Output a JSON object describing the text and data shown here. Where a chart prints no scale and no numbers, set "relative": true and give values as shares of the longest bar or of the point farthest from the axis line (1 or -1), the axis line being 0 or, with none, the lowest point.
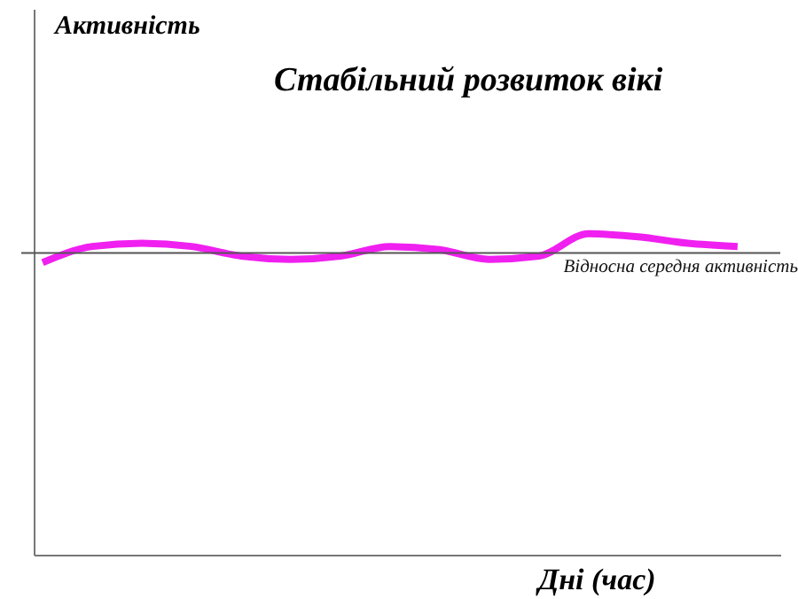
{
  "chart_data": {
    "type": "line",
    "title": "Стабільний розвиток вікі",
    "xlabel": "Дні  (час)",
    "annotations": [
      "Активність"
    ],
    "relative": true,
    "grid": false,
    "legend": false,
    "marker": "none",
    "line_style": "solid",
    "categories": [
      null,
      null,
      null,
      null,
      null,
      null,
      null,
      null,
      null,
      null,
      null,
      null,
      null,
      null,
      null
    ],
    "series": [
      {
        "color": "#f020f0",
        "values": [
          0.91,
          0.96,
          0.97,
          0.96,
          0.93,
          0.92,
          0.93,
          0.96,
          0.95,
          0.92,
          0.93,
          1.0,
          0.99,
          0.97,
          0.96
        ]
      }
    ],
    "ref_lines": [
      {
        "axis": "y",
        "value": 0.94,
        "label": "Відносна середня активність",
        "color": "#555555"
      }
    ]
  }
}
